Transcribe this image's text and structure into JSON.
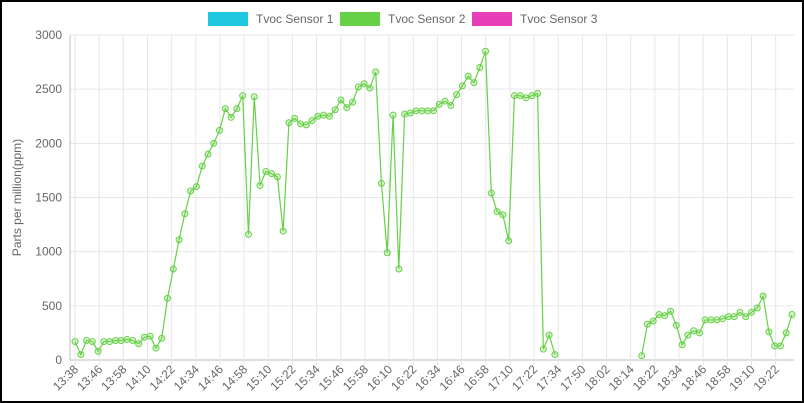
{
  "chart_data": {
    "type": "line",
    "ylabel": "Parts per million(ppm)",
    "ylim": [
      0,
      3000
    ],
    "y_ticks": [
      0,
      500,
      1000,
      1500,
      2000,
      2500,
      3000
    ],
    "grid": true,
    "legend_position": "top-center",
    "x_tick_labels": [
      "13:38",
      "13:46",
      "13:58",
      "14:10",
      "14:22",
      "14:34",
      "14:46",
      "14:58",
      "15:10",
      "15:22",
      "15:34",
      "15:46",
      "15:58",
      "16:10",
      "16:22",
      "16:34",
      "16:46",
      "16:58",
      "17:10",
      "17:22",
      "17:34",
      "17:50",
      "18:02",
      "18:14",
      "18:22",
      "18:34",
      "18:46",
      "18:58",
      "19:10",
      "19:22"
    ],
    "series": [
      {
        "name": "Tvoc Sensor 1",
        "color": "#1fc8e0",
        "values": []
      },
      {
        "name": "Tvoc Sensor 2",
        "color": "#66d147",
        "values": [
          170,
          50,
          180,
          170,
          80,
          170,
          170,
          180,
          180,
          190,
          180,
          150,
          210,
          220,
          110,
          200,
          570,
          840,
          1110,
          1350,
          1560,
          1600,
          1790,
          1900,
          2000,
          2120,
          2320,
          2240,
          2320,
          2440,
          1160,
          2430,
          1610,
          1740,
          1720,
          1690,
          1190,
          2190,
          2230,
          2180,
          2170,
          2210,
          2250,
          2260,
          2250,
          2310,
          2400,
          2330,
          2380,
          2520,
          2550,
          2510,
          2660,
          1630,
          990,
          2260,
          840,
          2270,
          2280,
          2300,
          2300,
          2300,
          2300,
          2360,
          2390,
          2350,
          2450,
          2530,
          2620,
          2560,
          2700,
          2850,
          1540,
          1370,
          1340,
          1100,
          2440,
          2440,
          2420,
          2440,
          2460,
          100,
          230,
          50,
          null,
          null,
          null,
          null,
          null,
          null,
          null,
          null,
          null,
          null,
          null,
          null,
          null,
          null,
          40,
          330,
          360,
          420,
          410,
          450,
          320,
          140,
          230,
          270,
          250,
          370,
          370,
          370,
          380,
          400,
          400,
          440,
          400,
          440,
          480,
          590,
          260,
          130,
          130,
          250,
          420
        ]
      },
      {
        "name": "Tvoc Sensor 3",
        "color": "#e83fb8",
        "values": []
      }
    ]
  }
}
